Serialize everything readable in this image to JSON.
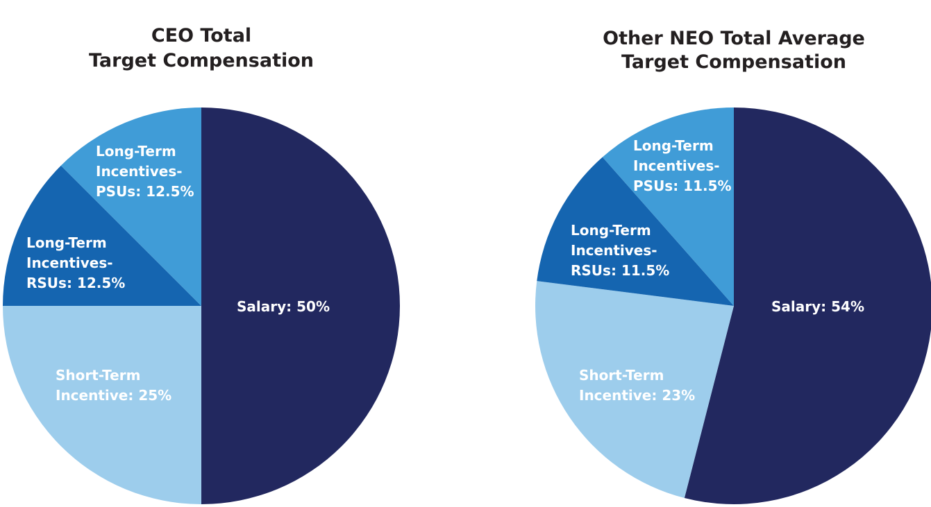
{
  "chart_data": [
    {
      "type": "pie",
      "title": [
        "CEO Total",
        "Target Compensation"
      ],
      "slices": [
        {
          "label": "Salary",
          "value": 50,
          "display": [
            "Salary: 50%"
          ],
          "color": "#22285f",
          "label_color": "#ffffff"
        },
        {
          "label": "Short-Term Incentive",
          "value": 25,
          "display": [
            "Short-Term",
            "Incentive: 25%"
          ],
          "color": "#9dcdec",
          "label_color": "#ffffff"
        },
        {
          "label": "Long-Term Incentives-RSUs",
          "value": 12.5,
          "display": [
            "Long-Term",
            "Incentives-",
            "RSUs: 12.5%"
          ],
          "color": "#1565b0",
          "label_color": "#ffffff"
        },
        {
          "label": "Long-Term Incentives-PSUs",
          "value": 12.5,
          "display": [
            "Long-Term",
            "Incentives-",
            "PSUs: 12.5%"
          ],
          "color": "#409cd7",
          "label_color": "#ffffff"
        }
      ]
    },
    {
      "type": "pie",
      "title": [
        "Other NEO Total Average",
        "Target Compensation"
      ],
      "slices": [
        {
          "label": "Salary",
          "value": 54,
          "display": [
            "Salary: 54%"
          ],
          "color": "#22285f",
          "label_color": "#ffffff"
        },
        {
          "label": "Short-Term Incentive",
          "value": 23,
          "display": [
            "Short-Term",
            "Incentive: 23%"
          ],
          "color": "#9dcdec",
          "label_color": "#ffffff"
        },
        {
          "label": "Long-Term Incentives-RSUs",
          "value": 11.5,
          "display": [
            "Long-Term",
            "Incentives-",
            "RSUs: 11.5%"
          ],
          "color": "#1565b0",
          "label_color": "#ffffff"
        },
        {
          "label": "Long-Term Incentives-PSUs",
          "value": 11.5,
          "display": [
            "Long-Term",
            "Incentives-",
            "PSUs: 11.5%"
          ],
          "color": "#409cd7",
          "label_color": "#ffffff"
        }
      ]
    }
  ]
}
